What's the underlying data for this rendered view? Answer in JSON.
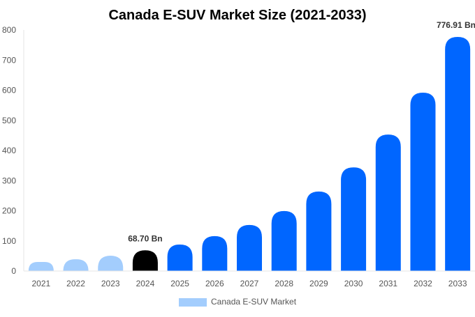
{
  "chart_data": {
    "type": "bar",
    "title": "Canada E-SUV Market Size (2021-2033)",
    "xlabel": "",
    "ylabel": "",
    "ylim": [
      0,
      800
    ],
    "yticks": [
      0,
      100,
      200,
      300,
      400,
      500,
      600,
      700,
      800
    ],
    "categories": [
      "2021",
      "2022",
      "2023",
      "2024",
      "2025",
      "2026",
      "2027",
      "2028",
      "2029",
      "2030",
      "2031",
      "2032",
      "2033"
    ],
    "series": [
      {
        "name": "Canada E-SUV Market",
        "values": [
          30,
          39,
          51,
          68.7,
          88,
          116,
          153,
          199,
          264,
          344,
          453,
          592,
          776.91
        ]
      }
    ],
    "data_labels": [
      {
        "index": 3,
        "text": "68.70 Bn"
      },
      {
        "index": 12,
        "text": "776.91 Bn"
      }
    ],
    "colors": {
      "historical": "#a3cdfd",
      "base_year": "#000000",
      "forecast": "#0066ff"
    },
    "legend": {
      "placement": "bottom",
      "label": "Canada E-SUV Market",
      "color": "#a3cdfd"
    },
    "grid": false
  }
}
